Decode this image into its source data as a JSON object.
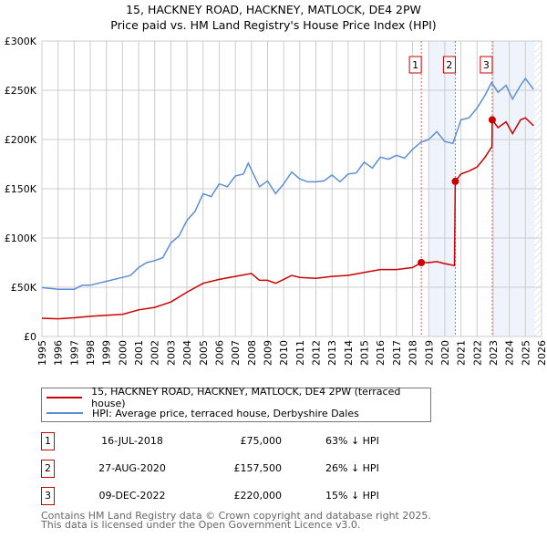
{
  "title": "15, HACKNEY ROAD, HACKNEY, MATLOCK, DE4 2PW",
  "subtitle": "Price paid vs. HM Land Registry's House Price Index (HPI)",
  "chart_data": {
    "type": "line",
    "ylim": [
      0,
      300000
    ],
    "xlim": [
      1995,
      2026
    ],
    "yticks": [
      {
        "v": 0,
        "label": "£0"
      },
      {
        "v": 50000,
        "label": "£50K"
      },
      {
        "v": 100000,
        "label": "£100K"
      },
      {
        "v": 150000,
        "label": "£150K"
      },
      {
        "v": 200000,
        "label": "£200K"
      },
      {
        "v": 250000,
        "label": "£250K"
      },
      {
        "v": 300000,
        "label": "£300K"
      }
    ],
    "xticks": [
      "1995",
      "1996",
      "1997",
      "1998",
      "1999",
      "2000",
      "2001",
      "2002",
      "2003",
      "2004",
      "2005",
      "2006",
      "2007",
      "2008",
      "2009",
      "2010",
      "2011",
      "2012",
      "2013",
      "2014",
      "2015",
      "2016",
      "2017",
      "2018",
      "2019",
      "2020",
      "2021",
      "2022",
      "2023",
      "2024",
      "2025",
      "2026"
    ],
    "grid": true,
    "colors": {
      "property": "#cc0000",
      "hpi": "#5b8fd4"
    },
    "series": [
      {
        "name": "15, HACKNEY ROAD, HACKNEY, MATLOCK, DE4 2PW (terraced house)",
        "key": "property",
        "x": [
          1995,
          1996,
          1997,
          1998,
          1999,
          2000,
          2001,
          2002,
          2003,
          2004,
          2005,
          2006,
          2007,
          2008,
          2008.5,
          2009,
          2009.5,
          2010,
          2010.5,
          2011,
          2012,
          2013,
          2014,
          2015,
          2016,
          2017,
          2018,
          2018.54,
          2019,
          2019.5,
          2020,
          2020.6,
          2020.65,
          2021,
          2021.5,
          2022,
          2022.5,
          2022.92,
          2022.94,
          2023.3,
          2023.8,
          2024.2,
          2024.7,
          2025,
          2025.5
        ],
        "y": [
          18500,
          18000,
          19000,
          20500,
          21500,
          22500,
          27000,
          29500,
          35000,
          45000,
          54000,
          58000,
          61000,
          64000,
          57000,
          57000,
          54000,
          58000,
          62000,
          60000,
          59000,
          61000,
          62000,
          65000,
          68000,
          68000,
          70000,
          75000,
          75000,
          76000,
          74000,
          72000,
          157500,
          165000,
          168000,
          172000,
          182000,
          193000,
          220000,
          212000,
          218000,
          206000,
          220000,
          222000,
          214000
        ]
      },
      {
        "name": "HPI: Average price, terraced house, Derbyshire Dales",
        "key": "hpi",
        "x": [
          1995,
          1996,
          1997,
          1997.5,
          1998,
          1999,
          2000,
          2000.5,
          2001,
          2001.5,
          2002,
          2002.5,
          2003,
          2003.5,
          2004,
          2004.5,
          2005,
          2005.5,
          2006,
          2006.5,
          2007,
          2007.5,
          2007.8,
          2008.5,
          2009,
          2009.5,
          2010,
          2010.5,
          2011,
          2011.5,
          2012,
          2012.5,
          2013,
          2013.5,
          2014,
          2014.5,
          2015,
          2015.5,
          2016,
          2016.5,
          2017,
          2017.5,
          2018,
          2018.5,
          2019,
          2019.5,
          2020,
          2020.5,
          2021,
          2021.5,
          2022,
          2022.5,
          2022.9,
          2023.3,
          2023.8,
          2024.2,
          2024.7,
          2025,
          2025.5
        ],
        "y": [
          49600,
          48000,
          48000,
          52000,
          52000,
          56000,
          60000,
          62000,
          70000,
          75000,
          77000,
          80000,
          95000,
          102000,
          118000,
          127000,
          145000,
          142000,
          155000,
          152000,
          163000,
          165000,
          176000,
          152000,
          158000,
          145000,
          155000,
          167000,
          160000,
          157000,
          157000,
          158000,
          164000,
          157000,
          165000,
          166000,
          177000,
          171000,
          182000,
          180000,
          184000,
          181000,
          190000,
          197000,
          200000,
          208000,
          198000,
          196000,
          220000,
          222000,
          232000,
          245000,
          258000,
          248000,
          255000,
          241000,
          255000,
          262000,
          251000
        ]
      }
    ],
    "sales": [
      {
        "id": "1",
        "x": 2018.54,
        "y": 75000,
        "date": "16-JUL-2018",
        "price": "£75,000",
        "hpi": "63% ↓ HPI"
      },
      {
        "id": "2",
        "x": 2020.65,
        "y": 157500,
        "date": "27-AUG-2020",
        "price": "£157,500",
        "hpi": "26% ↓ HPI"
      },
      {
        "id": "3",
        "x": 2022.94,
        "y": 220000,
        "date": "09-DEC-2022",
        "price": "£220,000",
        "hpi": "15% ↓ HPI"
      }
    ],
    "shaded": [
      [
        2019.0,
        2020.65
      ],
      [
        2022.94,
        2025.58
      ]
    ],
    "forecast_hatch": [
      2025.58,
      2026
    ]
  },
  "footer": [
    "Contains HM Land Registry data © Crown copyright and database right 2025.",
    "This data is licensed under the Open Government Licence v3.0."
  ]
}
